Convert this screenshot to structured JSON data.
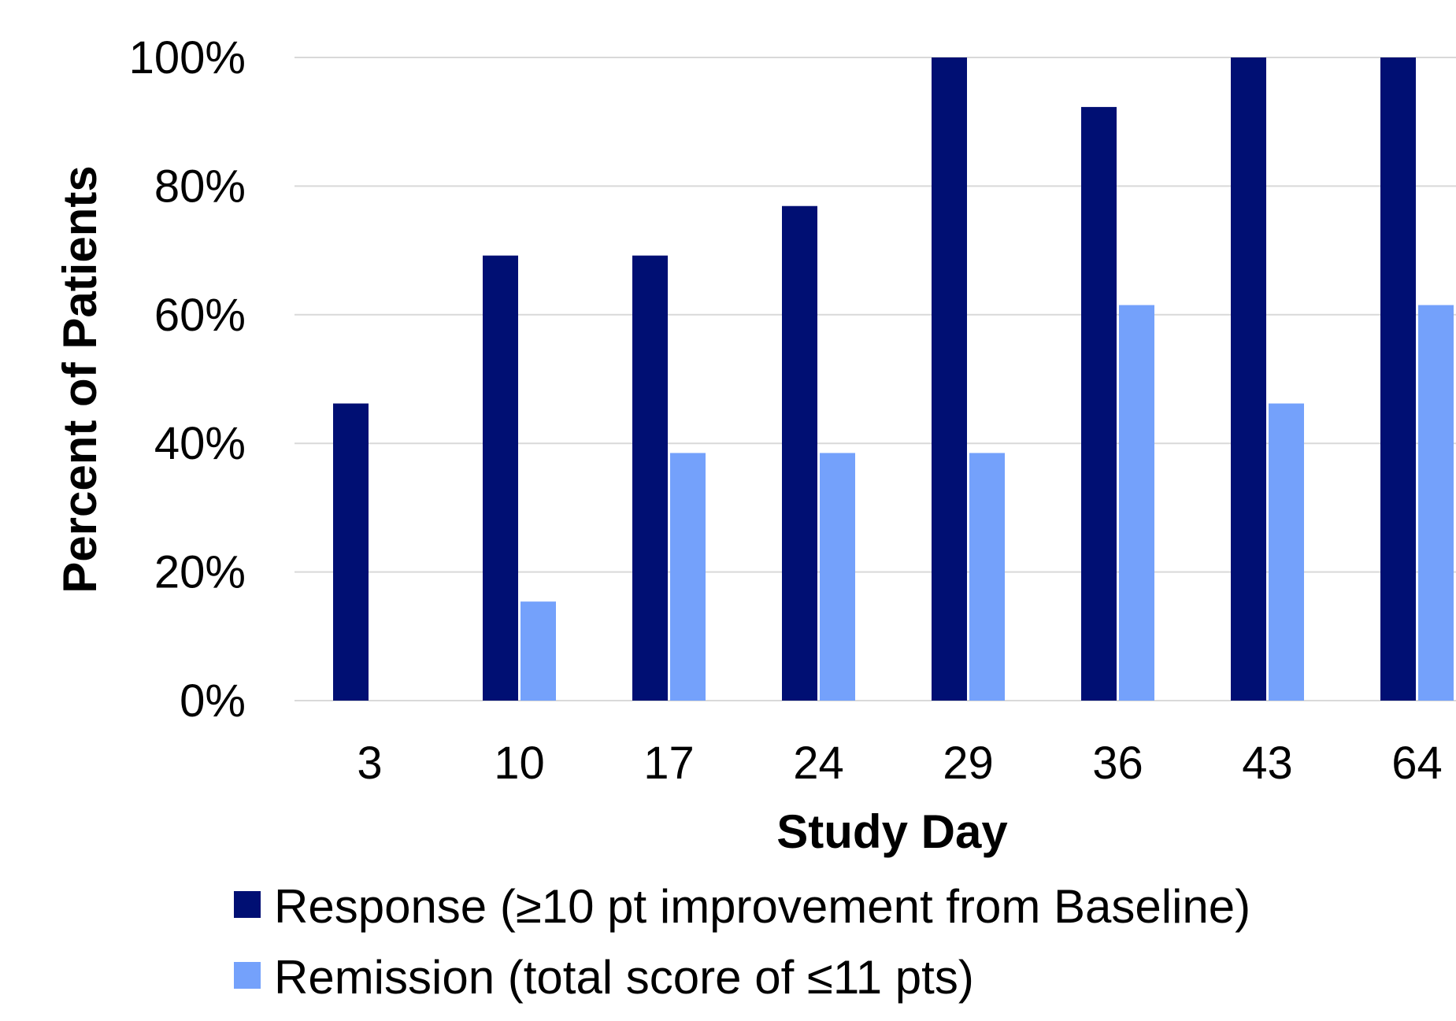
{
  "chart_data": {
    "type": "bar",
    "xlabel": "Study Day",
    "ylabel": "Percent of Patients",
    "categories": [
      "3",
      "10",
      "17",
      "24",
      "29",
      "36",
      "43",
      "64"
    ],
    "ylim": [
      0,
      100
    ],
    "yticks": [
      0,
      20,
      40,
      60,
      80,
      100
    ],
    "ytick_labels": [
      "0%",
      "20%",
      "40%",
      "60%",
      "80%",
      "100%"
    ],
    "grid": "horizontal",
    "legend_position": "bottom",
    "series": [
      {
        "name": "Response (≥10 pt improvement from Baseline)",
        "color": "#000F73",
        "values": [
          46.2,
          69.2,
          69.2,
          76.9,
          100,
          92.3,
          100,
          100
        ]
      },
      {
        "name": "Remission (total score of ≤11 pts)",
        "color": "#74A1FB",
        "values": [
          0,
          15.4,
          38.5,
          38.5,
          38.5,
          61.5,
          46.2,
          61.5
        ]
      }
    ]
  },
  "colors": {
    "gridline": "#D9D9D9",
    "text": "#000000"
  }
}
